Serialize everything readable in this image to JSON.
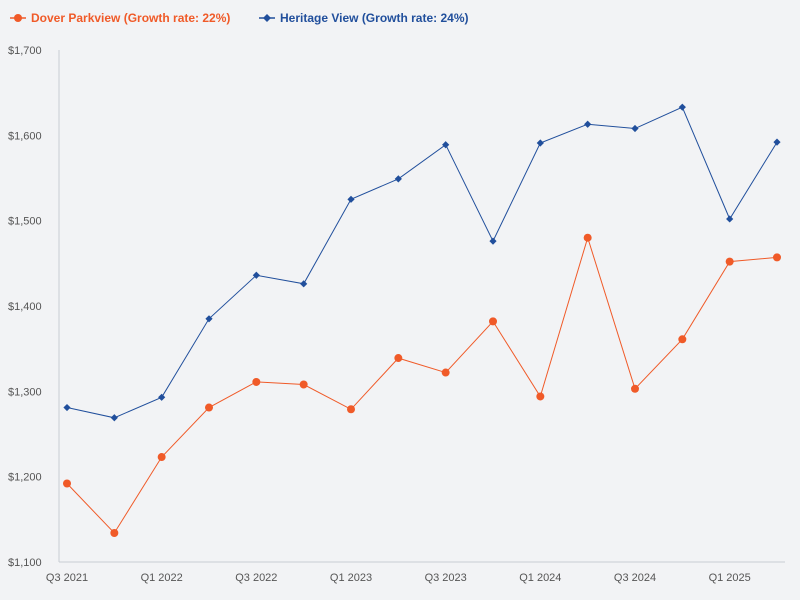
{
  "chart_data": {
    "type": "line",
    "title": "",
    "xlabel": "",
    "ylabel": "",
    "ylim": [
      1100,
      1700
    ],
    "yticks": [
      1100,
      1200,
      1300,
      1400,
      1500,
      1600,
      1700
    ],
    "ytick_labels": [
      "$1,100",
      "$1,200",
      "$1,300",
      "$1,400",
      "$1,500",
      "$1,600",
      "$1,700"
    ],
    "categories": [
      "Q3 2021",
      "Q4 2021",
      "Q1 2022",
      "Q2 2022",
      "Q3 2022",
      "Q4 2022",
      "Q1 2023",
      "Q2 2023",
      "Q3 2023",
      "Q4 2023",
      "Q1 2024",
      "Q2 2024",
      "Q3 2024",
      "Q4 2024",
      "Q1 2025",
      "Q2 2025"
    ],
    "xtick_labels": [
      "Q3 2021",
      "Q1 2022",
      "Q3 2022",
      "Q1 2023",
      "Q3 2023",
      "Q1 2024",
      "Q3 2024",
      "Q1 2025"
    ],
    "legend_position": "top-left",
    "series": [
      {
        "name": "Dover Parkview (Growth rate: 22%)",
        "color": "#f05a28",
        "marker": "circle",
        "values": [
          1192,
          1134,
          1223,
          1281,
          1311,
          1308,
          1279,
          1339,
          1322,
          1382,
          1294,
          1480,
          1303,
          1361,
          1452,
          1457
        ]
      },
      {
        "name": "Heritage View (Growth rate: 24%)",
        "color": "#214f9c",
        "marker": "diamond",
        "values": [
          1281,
          1269,
          1293,
          1385,
          1436,
          1426,
          1525,
          1549,
          1589,
          1476,
          1591,
          1613,
          1608,
          1633,
          1502,
          1592
        ]
      }
    ]
  }
}
